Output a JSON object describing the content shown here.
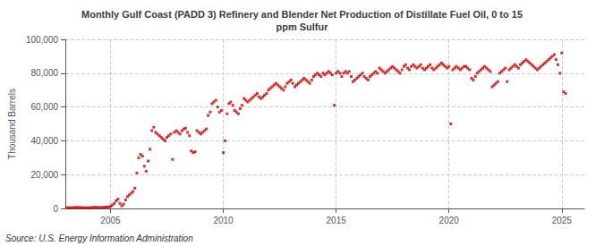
{
  "chart_data": {
    "type": "scatter",
    "title": "Monthly Gulf Coast (PADD 3) Refinery and Blender Net Production of Distillate Fuel Oil, 0 to 15\nppm Sulfur",
    "ylabel": "Thousand Barrels",
    "annotations": [
      "Source: U.S. Energy Information Administration"
    ],
    "color": "#CC0000",
    "marker": "square",
    "grid": true,
    "xlim": [
      2003.0,
      2026.0
    ],
    "xticks": [
      2005,
      2010,
      2015,
      2020,
      2025
    ],
    "ylim": [
      0,
      100000
    ],
    "yticks": [
      0,
      {
        "value": 20000,
        "label": "20,000"
      },
      {
        "value": 40000,
        "label": "40,000"
      },
      {
        "value": 60000,
        "label": "60,000"
      },
      {
        "value": 80000,
        "label": "80,000"
      },
      {
        "value": 100000,
        "label": "100,000"
      }
    ],
    "x": [
      2003.08,
      2003.17,
      2003.25,
      2003.33,
      2003.42,
      2003.5,
      2003.58,
      2003.67,
      2003.75,
      2003.83,
      2003.92,
      2004.0,
      2004.08,
      2004.17,
      2004.25,
      2004.33,
      2004.42,
      2004.5,
      2004.58,
      2004.67,
      2004.75,
      2004.83,
      2004.92,
      2005.0,
      2005.08,
      2005.17,
      2005.25,
      2005.33,
      2005.42,
      2005.5,
      2005.58,
      2005.67,
      2005.75,
      2005.83,
      2005.92,
      2006.0,
      2006.08,
      2006.17,
      2006.25,
      2006.33,
      2006.42,
      2006.5,
      2006.58,
      2006.67,
      2006.75,
      2006.83,
      2006.92,
      2007.0,
      2007.08,
      2007.17,
      2007.25,
      2007.33,
      2007.42,
      2007.5,
      2007.58,
      2007.67,
      2007.75,
      2007.83,
      2007.92,
      2008.0,
      2008.08,
      2008.17,
      2008.25,
      2008.33,
      2008.42,
      2008.5,
      2008.58,
      2008.67,
      2008.75,
      2008.83,
      2008.92,
      2009.0,
      2009.08,
      2009.17,
      2009.25,
      2009.33,
      2009.42,
      2009.5,
      2009.58,
      2009.67,
      2009.75,
      2009.83,
      2009.92,
      2010.0,
      2010.08,
      2010.17,
      2010.25,
      2010.33,
      2010.42,
      2010.5,
      2010.58,
      2010.67,
      2010.75,
      2010.83,
      2010.92,
      2011.0,
      2011.08,
      2011.17,
      2011.25,
      2011.33,
      2011.42,
      2011.5,
      2011.58,
      2011.67,
      2011.75,
      2011.83,
      2011.92,
      2012.0,
      2012.08,
      2012.17,
      2012.25,
      2012.33,
      2012.42,
      2012.5,
      2012.58,
      2012.67,
      2012.75,
      2012.83,
      2012.92,
      2013.0,
      2013.08,
      2013.17,
      2013.25,
      2013.33,
      2013.42,
      2013.5,
      2013.58,
      2013.67,
      2013.75,
      2013.83,
      2013.92,
      2014.0,
      2014.08,
      2014.17,
      2014.25,
      2014.33,
      2014.42,
      2014.5,
      2014.58,
      2014.67,
      2014.75,
      2014.83,
      2014.92,
      2015.0,
      2015.08,
      2015.17,
      2015.25,
      2015.33,
      2015.42,
      2015.5,
      2015.58,
      2015.67,
      2015.75,
      2015.83,
      2015.92,
      2016.0,
      2016.08,
      2016.17,
      2016.25,
      2016.33,
      2016.42,
      2016.5,
      2016.58,
      2016.67,
      2016.75,
      2016.83,
      2016.92,
      2017.0,
      2017.08,
      2017.17,
      2017.25,
      2017.33,
      2017.42,
      2017.5,
      2017.58,
      2017.67,
      2017.75,
      2017.83,
      2017.92,
      2018.0,
      2018.08,
      2018.17,
      2018.25,
      2018.33,
      2018.42,
      2018.5,
      2018.58,
      2018.67,
      2018.75,
      2018.83,
      2018.92,
      2019.0,
      2019.08,
      2019.17,
      2019.25,
      2019.33,
      2019.42,
      2019.5,
      2019.58,
      2019.67,
      2019.75,
      2019.83,
      2019.92,
      2020.0,
      2020.08,
      2020.17,
      2020.25,
      2020.33,
      2020.42,
      2020.5,
      2020.58,
      2020.67,
      2020.75,
      2020.83,
      2020.92,
      2021.0,
      2021.08,
      2021.17,
      2021.25,
      2021.33,
      2021.42,
      2021.5,
      2021.58,
      2021.67,
      2021.75,
      2021.83,
      2021.92,
      2022.0,
      2022.08,
      2022.17,
      2022.25,
      2022.33,
      2022.42,
      2022.5,
      2022.58,
      2022.67,
      2022.75,
      2022.83,
      2022.92,
      2023.0,
      2023.08,
      2023.17,
      2023.25,
      2023.33,
      2023.42,
      2023.5,
      2023.58,
      2023.67,
      2023.75,
      2023.83,
      2023.92,
      2024.0,
      2024.08,
      2024.17,
      2024.25,
      2024.33,
      2024.42,
      2024.5,
      2024.58,
      2024.67,
      2024.75,
      2024.83,
      2024.92,
      2025.0,
      2025.08,
      2025.17
    ],
    "values": [
      500,
      400,
      350,
      450,
      500,
      600,
      550,
      500,
      450,
      400,
      350,
      300,
      400,
      500,
      600,
      700,
      600,
      500,
      550,
      600,
      700,
      800,
      900,
      1200,
      2000,
      3000,
      4500,
      5500,
      3000,
      1500,
      2500,
      5000,
      7000,
      8000,
      9000,
      10000,
      12000,
      21000,
      30000,
      32000,
      31000,
      25000,
      22000,
      28000,
      35000,
      46000,
      48000,
      45000,
      44000,
      43000,
      42000,
      41000,
      40000,
      42000,
      43000,
      44000,
      29000,
      45000,
      46000,
      45000,
      44000,
      46000,
      47000,
      47500,
      45000,
      43000,
      34000,
      33000,
      33500,
      46000,
      45000,
      44000,
      45000,
      46000,
      47000,
      55000,
      57000,
      62000,
      63000,
      64000,
      60000,
      57000,
      58000,
      33000,
      40000,
      56000,
      62000,
      63000,
      61000,
      58000,
      57000,
      56000,
      59000,
      61000,
      65000,
      64000,
      63000,
      64000,
      65000,
      66000,
      67000,
      68000,
      66000,
      65000,
      66000,
      67000,
      68000,
      70000,
      71000,
      72000,
      73000,
      74000,
      73000,
      72000,
      71000,
      70000,
      72000,
      74000,
      75000,
      76000,
      74000,
      72000,
      73000,
      74000,
      75000,
      76000,
      77000,
      76000,
      75000,
      74000,
      76000,
      78000,
      79000,
      80000,
      79000,
      78000,
      80000,
      79000,
      80000,
      81000,
      80000,
      79000,
      61000,
      80000,
      81000,
      80000,
      78000,
      80000,
      81000,
      80000,
      81000,
      78000,
      75000,
      76000,
      77000,
      78000,
      79000,
      80000,
      78000,
      77000,
      76000,
      78000,
      79000,
      80000,
      81000,
      80000,
      83000,
      82000,
      81000,
      80000,
      81000,
      82000,
      83000,
      84000,
      83000,
      82000,
      81000,
      80000,
      82000,
      84000,
      85000,
      83000,
      82000,
      84000,
      85000,
      84000,
      83000,
      84000,
      85000,
      83000,
      82000,
      83000,
      84000,
      85000,
      83000,
      82000,
      83000,
      84000,
      85000,
      86000,
      85000,
      84000,
      83000,
      84000,
      50000,
      82000,
      83000,
      84000,
      83000,
      82000,
      83000,
      84000,
      84000,
      83000,
      82000,
      77000,
      76000,
      78000,
      80000,
      81000,
      82000,
      83000,
      84000,
      83000,
      82000,
      81000,
      72000,
      73000,
      74000,
      75000,
      80000,
      81000,
      82000,
      83000,
      75000,
      82000,
      83000,
      84000,
      85000,
      84000,
      83000,
      85000,
      86000,
      87000,
      88000,
      87000,
      86000,
      85000,
      84000,
      83000,
      82000,
      83000,
      84000,
      85000,
      86000,
      87000,
      88000,
      89000,
      90000,
      91000,
      88000,
      85000,
      80000,
      92000,
      69000,
      68000
    ]
  }
}
